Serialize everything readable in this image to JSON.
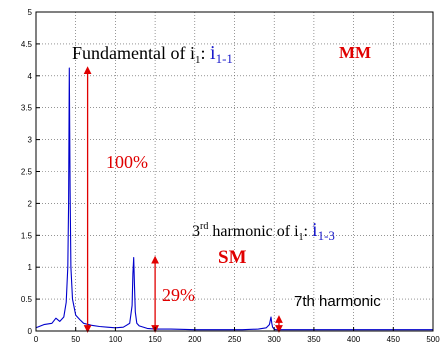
{
  "chart_data": {
    "type": "line",
    "xlim": [
      0,
      500
    ],
    "ylim": [
      0,
      5
    ],
    "x_ticks": [
      "0",
      "50",
      "100",
      "150",
      "200",
      "250",
      "300",
      "350",
      "400",
      "450",
      "500"
    ],
    "y_ticks": [
      "0",
      "0.5",
      "1",
      "1.5",
      "2",
      "2.5",
      "3",
      "3.5",
      "4",
      "4.5",
      "5"
    ],
    "grid": true,
    "series": [
      {
        "color": "#0000cc",
        "x": [
          0,
          10,
          20,
          25,
          30,
          35,
          38,
          40,
          41,
          42,
          43,
          44,
          46,
          50,
          55,
          60,
          70,
          80,
          90,
          100,
          110,
          118,
          121,
          122,
          123,
          124,
          125,
          127,
          130,
          140,
          150,
          170,
          200,
          230,
          260,
          280,
          290,
          294,
          296,
          297,
          298,
          300,
          302,
          310,
          330,
          360,
          400,
          440,
          470,
          500
        ],
        "y": [
          0.05,
          0.1,
          0.12,
          0.2,
          0.15,
          0.22,
          0.45,
          1.0,
          2.0,
          4.12,
          2.2,
          1.0,
          0.5,
          0.25,
          0.18,
          0.12,
          0.09,
          0.07,
          0.06,
          0.05,
          0.06,
          0.12,
          0.4,
          0.9,
          1.15,
          0.7,
          0.3,
          0.12,
          0.08,
          0.04,
          0.03,
          0.03,
          0.02,
          0.02,
          0.02,
          0.03,
          0.05,
          0.1,
          0.22,
          0.12,
          0.06,
          0.03,
          0.02,
          0.02,
          0.02,
          0.02,
          0.02,
          0.02,
          0.02,
          0.02
        ]
      }
    ],
    "arrows": [
      {
        "x": 65,
        "y_from": 0,
        "y_to": 4.12,
        "color": "#e00000"
      },
      {
        "x": 150,
        "y_from": 0,
        "y_to": 1.15,
        "color": "#e00000"
      },
      {
        "x": 306,
        "y_from": 0,
        "y_to": 0.22,
        "color": "#e00000"
      }
    ],
    "annotations": {
      "fundamental_prefix": "Fundamental of ",
      "fundamental_var": "i",
      "fundamental_var_sub": "1",
      "fundamental_colon": ": ",
      "fundamental_label": "i",
      "fundamental_label_sub": "1-1",
      "mm": "MM",
      "pct_100": "100%",
      "third_sup": "rd",
      "third_num": "3",
      "third_text": " harmonic of ",
      "third_var": "i",
      "third_var_sub": "1",
      "third_colon": ": ",
      "third_label": "i",
      "third_label_sub": "1-3",
      "sm": "SM",
      "pct_29": "29%",
      "seventh": "7th harmonic"
    }
  }
}
